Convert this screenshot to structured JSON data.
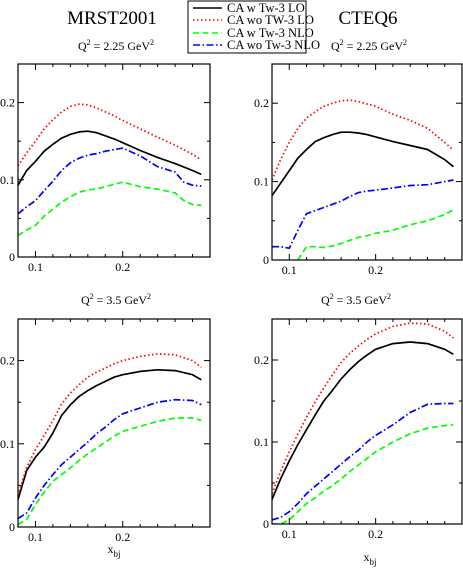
{
  "headers": {
    "left": "MRST2001",
    "right": "CTEQ6"
  },
  "panel_labels": {
    "top_left": "Q2 = 2.25 GeV2",
    "top_right": "Q2 = 2.25 GeV2",
    "bottom_left": "Q2 = 3.5 GeV2",
    "bottom_right": "Q2 = 3.5 GeV2"
  },
  "legend": {
    "items": [
      {
        "label": "CA w Tw-3 LO",
        "color": "#000000",
        "dash": "solid"
      },
      {
        "label": "CA wo TW-3 LO",
        "color": "#ff0000",
        "dash": "dotted"
      },
      {
        "label": "CA w Tw-3 NLO",
        "color": "#00ff00",
        "dash": "dashed"
      },
      {
        "label": "CA wo Tw-3 NLO",
        "color": "#0000ff",
        "dash": "dashdot"
      }
    ]
  },
  "chart_data": [
    {
      "type": "line",
      "id": "mrst_q225",
      "title": "MRST2001",
      "annotation": "Q2 = 2.25 GeV2",
      "xlabel": "",
      "xlim": [
        0.08,
        0.3
      ],
      "ylim": [
        0,
        0.25
      ],
      "xticks": [
        0.1,
        0.2
      ],
      "yticks": [
        0,
        0.1,
        0.2
      ],
      "series": [
        {
          "name": "CA w Tw-3 LO",
          "color": "#000000",
          "dash": "solid",
          "x": [
            0.08,
            0.09,
            0.1,
            0.11,
            0.12,
            0.13,
            0.14,
            0.15,
            0.16,
            0.17,
            0.18,
            0.19,
            0.2,
            0.22,
            0.24,
            0.26,
            0.28,
            0.29
          ],
          "y": [
            0.093,
            0.112,
            0.124,
            0.137,
            0.146,
            0.154,
            0.159,
            0.162,
            0.163,
            0.161,
            0.157,
            0.153,
            0.148,
            0.138,
            0.129,
            0.121,
            0.112,
            0.107
          ]
        },
        {
          "name": "CA wo TW-3 LO",
          "color": "#ff0000",
          "dash": "dotted",
          "x": [
            0.08,
            0.09,
            0.1,
            0.11,
            0.12,
            0.13,
            0.14,
            0.15,
            0.16,
            0.17,
            0.18,
            0.19,
            0.2,
            0.22,
            0.24,
            0.26,
            0.28,
            0.29
          ],
          "y": [
            0.118,
            0.135,
            0.15,
            0.166,
            0.178,
            0.188,
            0.195,
            0.198,
            0.197,
            0.193,
            0.188,
            0.183,
            0.177,
            0.166,
            0.155,
            0.145,
            0.133,
            0.126
          ]
        },
        {
          "name": "CA w Tw-3 NLO",
          "color": "#00ff00",
          "dash": "dashed",
          "x": [
            0.08,
            0.09,
            0.1,
            0.11,
            0.12,
            0.13,
            0.14,
            0.15,
            0.16,
            0.17,
            0.18,
            0.19,
            0.2,
            0.21,
            0.22,
            0.24,
            0.26,
            0.27,
            0.28,
            0.29
          ],
          "y": [
            0.028,
            0.035,
            0.041,
            0.053,
            0.062,
            0.071,
            0.078,
            0.084,
            0.087,
            0.088,
            0.091,
            0.094,
            0.097,
            0.094,
            0.091,
            0.088,
            0.083,
            0.073,
            0.068,
            0.067
          ]
        },
        {
          "name": "CA wo Tw-3 NLO",
          "color": "#0000ff",
          "dash": "dashdot",
          "x": [
            0.08,
            0.09,
            0.1,
            0.11,
            0.12,
            0.13,
            0.14,
            0.15,
            0.16,
            0.17,
            0.18,
            0.19,
            0.2,
            0.22,
            0.24,
            0.26,
            0.27,
            0.28,
            0.29
          ],
          "y": [
            0.056,
            0.065,
            0.073,
            0.086,
            0.098,
            0.112,
            0.122,
            0.128,
            0.132,
            0.134,
            0.137,
            0.139,
            0.141,
            0.131,
            0.117,
            0.11,
            0.097,
            0.093,
            0.092
          ]
        }
      ]
    },
    {
      "type": "line",
      "id": "cteq_q225",
      "title": "CTEQ6",
      "annotation": "Q2 = 2.25 GeV2",
      "xlabel": "",
      "xlim": [
        0.08,
        0.3
      ],
      "ylim": [
        0,
        0.25
      ],
      "xticks": [
        0.1,
        0.2
      ],
      "yticks": [
        0,
        0.1,
        0.2
      ],
      "series": [
        {
          "name": "CA w Tw-3 LO",
          "color": "#000000",
          "dash": "solid",
          "x": [
            0.08,
            0.09,
            0.1,
            0.11,
            0.12,
            0.13,
            0.14,
            0.15,
            0.16,
            0.17,
            0.18,
            0.19,
            0.2,
            0.22,
            0.24,
            0.26,
            0.28,
            0.29
          ],
          "y": [
            0.082,
            0.098,
            0.114,
            0.13,
            0.141,
            0.151,
            0.156,
            0.16,
            0.163,
            0.163,
            0.162,
            0.16,
            0.157,
            0.151,
            0.146,
            0.141,
            0.128,
            0.119
          ]
        },
        {
          "name": "CA wo TW-3 LO",
          "color": "#ff0000",
          "dash": "dotted",
          "x": [
            0.08,
            0.09,
            0.1,
            0.11,
            0.12,
            0.13,
            0.14,
            0.15,
            0.16,
            0.17,
            0.18,
            0.19,
            0.2,
            0.22,
            0.24,
            0.26,
            0.28,
            0.29
          ],
          "y": [
            0.102,
            0.128,
            0.15,
            0.168,
            0.181,
            0.189,
            0.196,
            0.2,
            0.203,
            0.204,
            0.202,
            0.199,
            0.196,
            0.186,
            0.178,
            0.168,
            0.15,
            0.14
          ]
        },
        {
          "name": "CA w Tw-3 NLO",
          "color": "#00ff00",
          "dash": "dashed",
          "x": [
            0.11,
            0.12,
            0.13,
            0.14,
            0.15,
            0.16,
            0.17,
            0.18,
            0.19,
            0.2,
            0.22,
            0.24,
            0.26,
            0.28,
            0.29
          ],
          "y": [
            0.0,
            0.017,
            0.017,
            0.016,
            0.018,
            0.021,
            0.025,
            0.029,
            0.031,
            0.034,
            0.038,
            0.045,
            0.05,
            0.058,
            0.064
          ]
        },
        {
          "name": "CA wo Tw-3 NLO",
          "color": "#0000ff",
          "dash": "dashdot",
          "x": [
            0.08,
            0.09,
            0.1,
            0.11,
            0.12,
            0.13,
            0.14,
            0.15,
            0.16,
            0.17,
            0.18,
            0.19,
            0.2,
            0.22,
            0.24,
            0.26,
            0.28,
            0.29
          ],
          "y": [
            0.017,
            0.017,
            0.015,
            0.038,
            0.059,
            0.063,
            0.067,
            0.071,
            0.075,
            0.081,
            0.086,
            0.088,
            0.089,
            0.092,
            0.095,
            0.096,
            0.1,
            0.102
          ]
        }
      ]
    },
    {
      "type": "line",
      "id": "mrst_q35",
      "title": "",
      "annotation": "Q2 = 3.5 GeV2",
      "xlabel": "xbj",
      "xlim": [
        0.08,
        0.3
      ],
      "ylim": [
        0,
        0.25
      ],
      "xticks": [
        0.1,
        0.2
      ],
      "yticks": [
        0,
        0.1,
        0.2
      ],
      "series": [
        {
          "name": "CA w Tw-3 LO",
          "color": "#000000",
          "dash": "solid",
          "x": [
            0.08,
            0.09,
            0.1,
            0.11,
            0.12,
            0.13,
            0.14,
            0.15,
            0.16,
            0.17,
            0.18,
            0.19,
            0.2,
            0.22,
            0.24,
            0.26,
            0.28,
            0.29
          ],
          "y": [
            0.033,
            0.068,
            0.084,
            0.096,
            0.113,
            0.134,
            0.147,
            0.157,
            0.164,
            0.17,
            0.175,
            0.18,
            0.183,
            0.187,
            0.189,
            0.188,
            0.183,
            0.177
          ]
        },
        {
          "name": "CA wo TW-3 LO",
          "color": "#ff0000",
          "dash": "dotted",
          "x": [
            0.08,
            0.09,
            0.1,
            0.11,
            0.12,
            0.13,
            0.14,
            0.15,
            0.16,
            0.17,
            0.18,
            0.19,
            0.2,
            0.22,
            0.24,
            0.26,
            0.28,
            0.29
          ],
          "y": [
            0.038,
            0.072,
            0.093,
            0.11,
            0.128,
            0.148,
            0.161,
            0.171,
            0.18,
            0.186,
            0.191,
            0.196,
            0.2,
            0.205,
            0.208,
            0.207,
            0.2,
            0.192
          ]
        },
        {
          "name": "CA w Tw-3 NLO",
          "color": "#00ff00",
          "dash": "dashed",
          "x": [
            0.08,
            0.09,
            0.1,
            0.11,
            0.12,
            0.13,
            0.14,
            0.15,
            0.16,
            0.17,
            0.18,
            0.19,
            0.2,
            0.22,
            0.24,
            0.26,
            0.28,
            0.29
          ],
          "y": [
            0.003,
            0.009,
            0.027,
            0.042,
            0.055,
            0.063,
            0.071,
            0.08,
            0.088,
            0.095,
            0.102,
            0.109,
            0.115,
            0.121,
            0.127,
            0.131,
            0.131,
            0.128
          ]
        },
        {
          "name": "CA wo Tw-3 NLO",
          "color": "#0000ff",
          "dash": "dashdot",
          "x": [
            0.08,
            0.09,
            0.1,
            0.11,
            0.12,
            0.13,
            0.14,
            0.15,
            0.16,
            0.17,
            0.18,
            0.19,
            0.2,
            0.22,
            0.24,
            0.26,
            0.28,
            0.29
          ],
          "y": [
            0.01,
            0.017,
            0.035,
            0.05,
            0.063,
            0.075,
            0.084,
            0.093,
            0.102,
            0.112,
            0.12,
            0.129,
            0.136,
            0.143,
            0.15,
            0.153,
            0.152,
            0.147
          ]
        }
      ]
    },
    {
      "type": "line",
      "id": "cteq_q35",
      "title": "",
      "annotation": "Q2 = 3.5 GeV2",
      "xlabel": "xbj",
      "xlim": [
        0.08,
        0.3
      ],
      "ylim": [
        0,
        0.25
      ],
      "xticks": [
        0.1,
        0.2
      ],
      "yticks": [
        0,
        0.1,
        0.2
      ],
      "series": [
        {
          "name": "CA w Tw-3 LO",
          "color": "#000000",
          "dash": "solid",
          "x": [
            0.08,
            0.09,
            0.1,
            0.11,
            0.12,
            0.13,
            0.14,
            0.15,
            0.16,
            0.17,
            0.18,
            0.19,
            0.2,
            0.22,
            0.24,
            0.26,
            0.28,
            0.29
          ],
          "y": [
            0.03,
            0.055,
            0.077,
            0.097,
            0.115,
            0.133,
            0.15,
            0.163,
            0.177,
            0.188,
            0.198,
            0.206,
            0.213,
            0.22,
            0.222,
            0.22,
            0.213,
            0.207
          ]
        },
        {
          "name": "CA wo TW-3 LO",
          "color": "#ff0000",
          "dash": "dotted",
          "x": [
            0.08,
            0.09,
            0.1,
            0.11,
            0.12,
            0.13,
            0.14,
            0.15,
            0.16,
            0.17,
            0.18,
            0.19,
            0.2,
            0.22,
            0.24,
            0.26,
            0.28,
            0.29
          ],
          "y": [
            0.037,
            0.064,
            0.088,
            0.11,
            0.13,
            0.149,
            0.166,
            0.182,
            0.197,
            0.208,
            0.217,
            0.225,
            0.232,
            0.241,
            0.245,
            0.244,
            0.235,
            0.227
          ]
        },
        {
          "name": "CA w Tw-3 NLO",
          "color": "#00ff00",
          "dash": "dashed",
          "x": [
            0.08,
            0.09,
            0.1,
            0.11,
            0.12,
            0.13,
            0.14,
            0.15,
            0.16,
            0.17,
            0.18,
            0.19,
            0.2,
            0.22,
            0.24,
            0.26,
            0.28,
            0.29
          ],
          "y": [
            0.0,
            0.0,
            0.005,
            0.015,
            0.025,
            0.032,
            0.04,
            0.047,
            0.055,
            0.064,
            0.072,
            0.08,
            0.088,
            0.1,
            0.11,
            0.117,
            0.12,
            0.121
          ]
        },
        {
          "name": "CA wo Tw-3 NLO",
          "color": "#0000ff",
          "dash": "dashdot",
          "x": [
            0.08,
            0.09,
            0.1,
            0.11,
            0.12,
            0.13,
            0.14,
            0.15,
            0.16,
            0.17,
            0.18,
            0.19,
            0.2,
            0.22,
            0.24,
            0.26,
            0.28,
            0.29
          ],
          "y": [
            0.005,
            0.008,
            0.015,
            0.025,
            0.037,
            0.046,
            0.055,
            0.064,
            0.073,
            0.082,
            0.09,
            0.1,
            0.108,
            0.121,
            0.136,
            0.146,
            0.147,
            0.147
          ]
        }
      ]
    }
  ]
}
